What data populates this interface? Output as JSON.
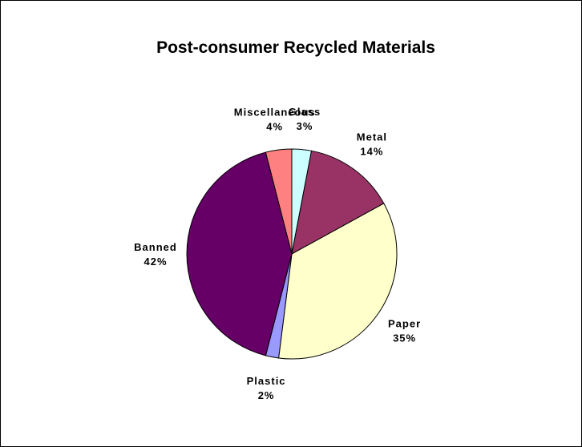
{
  "chart_data": {
    "type": "pie",
    "title": "Post-consumer Recycled Materials",
    "categories": [
      "Glass",
      "Metal",
      "Paper",
      "Plastic",
      "Banned",
      "Miscellaneous"
    ],
    "values": [
      3,
      14,
      35,
      2,
      42,
      4
    ],
    "value_labels": [
      "3%",
      "14%",
      "35%",
      "2%",
      "42%",
      "4%"
    ],
    "colors": [
      "#CCFFFF",
      "#993366",
      "#FFFFCC",
      "#9999FF",
      "#660066",
      "#FF8080"
    ],
    "start": "12 o'clock",
    "direction": "clockwise",
    "legend": "none",
    "data_labels": "category and percentage, outside slices"
  }
}
